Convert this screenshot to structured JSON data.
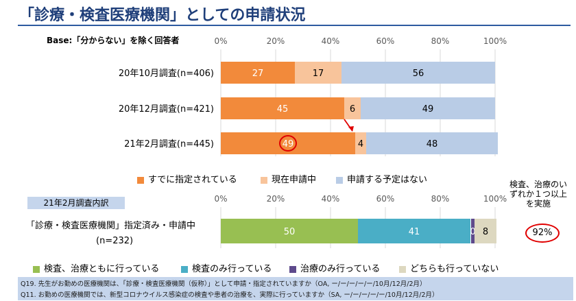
{
  "title": "「診療・検査医療機関」としての申請状況",
  "base_note": "Base:「分からない」を除く回答者",
  "colors": {
    "title": "#1f3f7a",
    "orange": "#f28a3b",
    "peach": "#f8c49b",
    "lightblue": "#b9cce6",
    "green": "#98bf52",
    "teal": "#4aaec6",
    "purple": "#5e4a8c",
    "beige": "#ddd8c0",
    "red": "#e00000"
  },
  "chart_data": [
    {
      "type": "bar",
      "orientation": "horizontal",
      "stacked": true,
      "categories": [
        "20年10月調査(n=406)",
        "20年12月調査(n=421)",
        "21年2月調査(n=445)"
      ],
      "series": [
        {
          "name": "すでに指定されている",
          "values": [
            27,
            45,
            49
          ]
        },
        {
          "name": "現在申請中",
          "values": [
            17,
            6,
            4
          ]
        },
        {
          "name": "申請する予定はない",
          "values": [
            56,
            49,
            48
          ]
        }
      ],
      "xlim": [
        0,
        100
      ],
      "x_ticks": [
        "0%",
        "20%",
        "40%",
        "60%",
        "80%",
        "100%"
      ],
      "highlight": {
        "category": "21年2月調査(n=445)",
        "value": 49
      },
      "legend_position": "bottom"
    },
    {
      "type": "bar",
      "orientation": "horizontal",
      "stacked": true,
      "categories": [
        "「診療・検査医療機関」指定済み・申請中 (n=232)"
      ],
      "series": [
        {
          "name": "検査、治療ともに行っている",
          "values": [
            50
          ]
        },
        {
          "name": "検査のみ行っている",
          "values": [
            41
          ]
        },
        {
          "name": "治療のみ行っている",
          "values": [
            0
          ]
        },
        {
          "name": "どちらも行っていない",
          "values": [
            8
          ]
        }
      ],
      "xlim": [
        0,
        100
      ],
      "x_ticks": [
        "0%",
        "20%",
        "40%",
        "60%",
        "80%",
        "100%"
      ],
      "legend_position": "bottom"
    }
  ],
  "breakdown_label": "21年2月調査内訳",
  "row2_label_line1": "「診療・検査医療機関」指定済み・申請中",
  "row2_label_line2": "(n=232)",
  "side_note": "検査、治療のいずれか１つ以上を実施",
  "side_pct": "92%",
  "footnote": [
    "Q19. 先生がお勤めの医療機関は、「診療・検査医療機関（仮称）」として申請・指定されていますか（OA, ー/ー/ー/ー/ー/10月/12月/2月）",
    "Q11. お勤めの医療機関では、新型コロナウイルス感染症の検査や患者の治療を、実際に行っていますか（SA, ー/ー/ー/ー/ー/10月/12月/2月）"
  ]
}
